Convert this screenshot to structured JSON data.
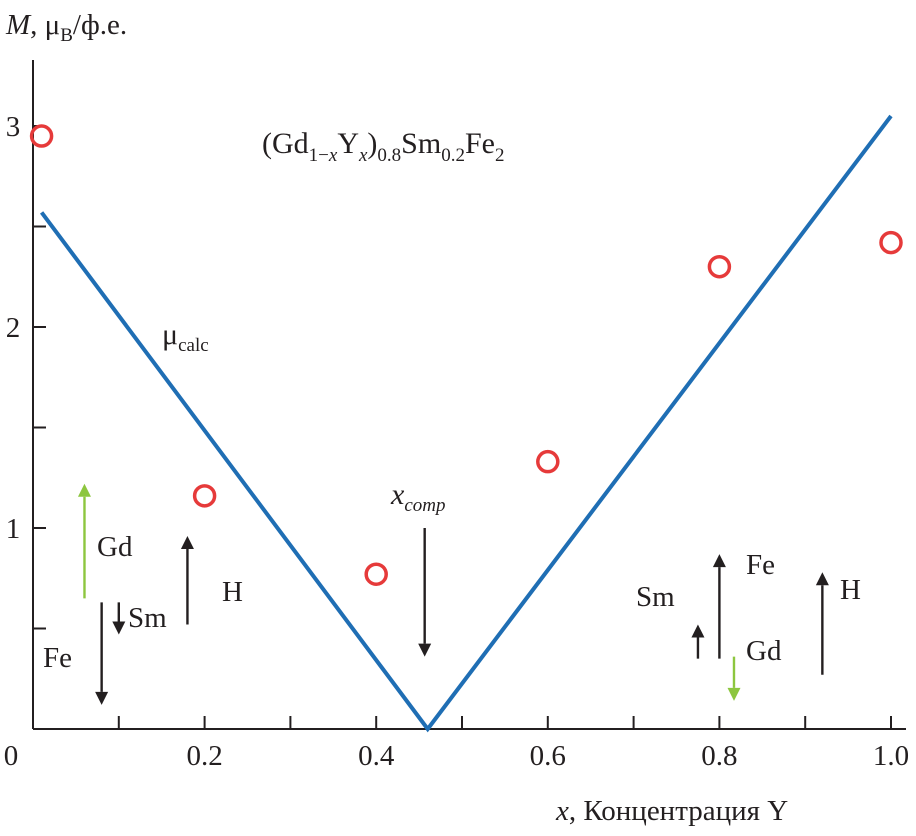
{
  "chart_data": {
    "type": "line",
    "title": "(Gd1−xYx)0.8Sm0.2Fe2",
    "title_parts": {
      "gd": "(Gd",
      "sub1": "1−",
      "subx": "x",
      "y": "Y",
      "subx2": "x",
      "close": ")",
      "sub08": "0.8",
      "sm": "Sm",
      "sub02": "0.2",
      "fe": "Fe",
      "sub2": "2"
    },
    "ylabel": {
      "var": "M",
      "rest": ", μ",
      "sub": "B",
      "unit": "/ф.е."
    },
    "xlabel": {
      "var": "x",
      "rest": ", Концентрация Y"
    },
    "xlim": [
      0,
      1.0
    ],
    "ylim": [
      0,
      3.3
    ],
    "x_ticks": [
      0,
      0.1,
      0.2,
      0.3,
      0.4,
      0.5,
      0.6,
      0.7,
      0.8,
      0.9,
      1.0
    ],
    "x_tick_labels": [
      {
        "value": 0,
        "label": "0"
      },
      {
        "value": 0.2,
        "label": "0.2"
      },
      {
        "value": 0.4,
        "label": "0.4"
      },
      {
        "value": 0.6,
        "label": "0.6"
      },
      {
        "value": 0.8,
        "label": "0.8"
      },
      {
        "value": 1.0,
        "label": "1.0"
      }
    ],
    "y_ticks": [
      0.5,
      1,
      1.5,
      2,
      2.5,
      3
    ],
    "y_tick_labels": [
      {
        "value": 1,
        "label": "1"
      },
      {
        "value": 2,
        "label": "2"
      },
      {
        "value": 3,
        "label": "3"
      }
    ],
    "series": [
      {
        "name": "μcalc",
        "kind": "line",
        "color": "#1f6eb4",
        "x": [
          0.01,
          0.46,
          1.0
        ],
        "y": [
          2.57,
          0.0,
          3.05
        ]
      },
      {
        "kind": "scatter",
        "color": "#e63a3a",
        "x": [
          0.01,
          0.2,
          0.4,
          0.6,
          0.8,
          1.0
        ],
        "y": [
          2.95,
          1.16,
          0.77,
          1.33,
          2.3,
          2.42
        ]
      }
    ],
    "annotations": {
      "mu_calc": {
        "main": "μ",
        "sub": "calc",
        "x": 0.155,
        "y": 2.0
      },
      "x_comp": {
        "main": "x",
        "sub": "comp",
        "x": 0.46,
        "y_text": 1.16,
        "arrow_from": 1.0,
        "arrow_to": 0.36
      },
      "left_diagram": {
        "gd": "Gd",
        "sm": "Sm",
        "fe": "Fe",
        "h": "H",
        "gd_arrow": {
          "x": 0.06,
          "from": 0.65,
          "to": 1.22
        },
        "sm_arrow": {
          "x": 0.1,
          "from": 0.63,
          "to": 0.47
        },
        "fe_arrow": {
          "x": 0.08,
          "from": 0.63,
          "to": 0.12
        },
        "h_arrow": {
          "x": 0.18,
          "from": 0.52,
          "to": 0.96
        }
      },
      "right_diagram": {
        "fe": "Fe",
        "sm": "Sm",
        "gd": "Gd",
        "h": "H",
        "fe_arrow": {
          "x": 0.8,
          "from": 0.35,
          "to": 0.87
        },
        "sm_arrow": {
          "x": 0.775,
          "from": 0.35,
          "to": 0.52
        },
        "gd_arrow": {
          "x": 0.817,
          "from": 0.36,
          "to": 0.14
        },
        "h_arrow": {
          "x": 0.92,
          "from": 0.27,
          "to": 0.78
        }
      }
    },
    "colors": {
      "line": "#1f6eb4",
      "points": "#e63a3a",
      "gd_arrow": "#8dc63f",
      "ink": "#231f20"
    }
  }
}
